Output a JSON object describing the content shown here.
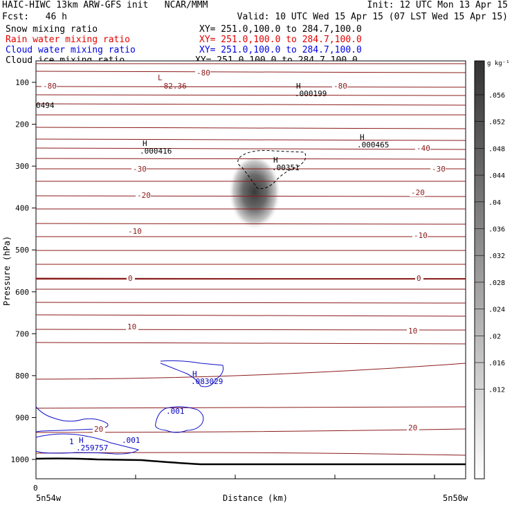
{
  "header": {
    "line1_left": "HAIC-HIWC 13km ARW-GFS init   NCAR/MMM",
    "line1_right": "Init: 12 UTC Mon 13 Apr 15",
    "line2_left": "Fcst:   46 h",
    "line2_right": "Valid: 10 UTC Wed 15 Apr 15 (07 LST Wed 15 Apr 15)",
    "fields": [
      {
        "label": "Snow mixing ratio",
        "xy": "XY= 251.0,100.0 to 284.7,100.0",
        "color": "#000000"
      },
      {
        "label": "Rain water mixing ratio",
        "xy": "XY= 251.0,100.0 to 284.7,100.0",
        "color": "#e00000"
      },
      {
        "label": "Cloud water mixing ratio",
        "xy": "XY= 251.0,100.0 to 284.7,100.0",
        "color": "#0000e0"
      },
      {
        "label": "Cloud ice mixing ratio",
        "xy": "XY= 251.0,100.0 to 284.7,100.0",
        "color": "#000000"
      }
    ]
  },
  "chart_data": {
    "type": "heatmap",
    "ylabel": "Pressure (hPa)",
    "xlabel": "Distance (km)",
    "y_ticks": [
      100,
      200,
      300,
      400,
      500,
      600,
      700,
      800,
      900,
      1000
    ],
    "x_ticks": [
      "0"
    ],
    "x_endpoints": [
      "5n54w",
      "5n50w"
    ],
    "colorbar": {
      "unit": "g kg⁻¹",
      "ticks": [
        ".056",
        ".052",
        ".048",
        ".044",
        ".04",
        ".036",
        ".032",
        ".028",
        ".024",
        ".02",
        ".016",
        ".012"
      ]
    },
    "temperature_contour_labels": [
      "-80",
      "-80",
      "-80",
      "-40",
      "-30",
      "-30",
      "-20",
      "-20",
      "-10",
      "-10",
      "0",
      "0",
      "10",
      "10",
      "20",
      "20"
    ],
    "field_annotations": [
      {
        "mark": "L",
        "value": "-82.36",
        "color": "#8b0000"
      },
      {
        "mark": "H",
        "value": ".000199",
        "color": "#000000"
      },
      {
        "mark": "",
        "value": "0494",
        "color": "#000000"
      },
      {
        "mark": "H",
        "value": ".000416",
        "color": "#000000"
      },
      {
        "mark": "H",
        "value": ".000465",
        "color": "#000000"
      },
      {
        "mark": "H",
        "value": ".00351",
        "color": "#000000"
      },
      {
        "mark": "H",
        "value": ".083029",
        "color": "#0000c0"
      },
      {
        "mark": "H",
        "value": ".259757",
        "color": "#0000c0"
      },
      {
        "mark": "",
        "value": ".001",
        "color": "#0000c0"
      },
      {
        "mark": "",
        "value": ".001",
        "color": "#0000c0"
      },
      {
        "mark": "",
        "value": "1",
        "color": "#0000c0"
      }
    ]
  },
  "colors": {
    "temperature_contour": "#8b1a1a",
    "cloud_water_contour": "#1010c8",
    "snow_shading": "#404040",
    "terrain": "#000000"
  }
}
